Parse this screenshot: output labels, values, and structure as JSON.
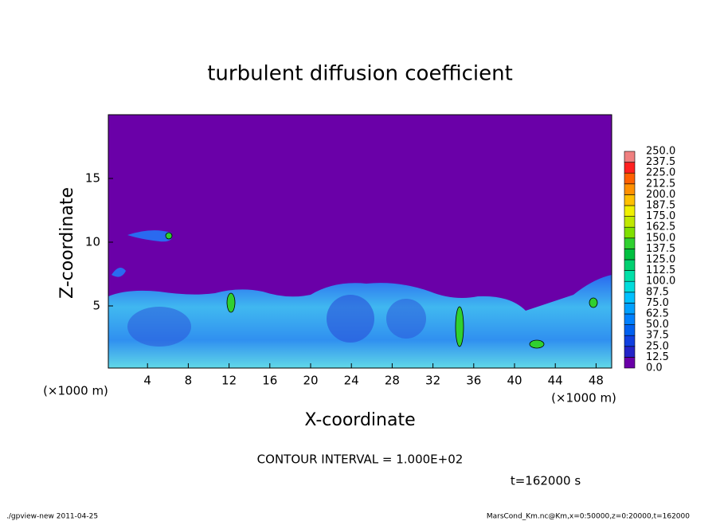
{
  "chart_data": {
    "type": "contour",
    "title": "turbulent diffusion coefficient",
    "x_label": "X-coordinate",
    "y_label": "Z-coordinate",
    "x_unit": "(×1000 m)",
    "y_unit": "(×1000 m)",
    "xlim": [
      0,
      50
    ],
    "ylim": [
      0,
      20
    ],
    "xticks": [
      4,
      8,
      12,
      16,
      20,
      24,
      28,
      32,
      36,
      40,
      44,
      48
    ],
    "yticks": [
      5,
      10,
      15
    ],
    "contour_interval": "CONTOUR INTERVAL = 1.000E+02",
    "time_label": "t=162000 s",
    "colorbar": {
      "ticks": [
        {
          "value": 0,
          "label": "0.0"
        },
        12.5,
        {
          "value": 25,
          "label": "25.0"
        },
        37.5,
        {
          "value": 50,
          "label": "50.0"
        },
        62.5,
        {
          "value": 75,
          "label": "75.0"
        },
        87.5,
        {
          "value": 100,
          "label": "100.0"
        },
        112.5,
        {
          "value": 125,
          "label": "125.0"
        },
        137.5,
        {
          "value": 150,
          "label": "150.0"
        },
        162.5,
        {
          "value": 175,
          "label": "175.0"
        },
        187.5,
        {
          "value": 200,
          "label": "200.0"
        },
        212.5,
        {
          "value": 225,
          "label": "225.0"
        },
        237.5,
        {
          "value": 250,
          "label": "250.0"
        }
      ],
      "colors": [
        "#6a00a8",
        "#2424c8",
        "#1040e0",
        "#0060f0",
        "#0080ff",
        "#00a0ff",
        "#00c0ff",
        "#00dcdc",
        "#00e0a8",
        "#00d070",
        "#00c040",
        "#30d030",
        "#80e000",
        "#c0e800",
        "#f0f000",
        "#ffc000",
        "#ff9000",
        "#ff6000",
        "#ff2020",
        "#f08080"
      ]
    }
  },
  "footer": {
    "left": "./gpview-new  2011-04-25",
    "right": "MarsCond_Km.nc@Km,x=0:50000,z=0:20000,t=162000"
  }
}
